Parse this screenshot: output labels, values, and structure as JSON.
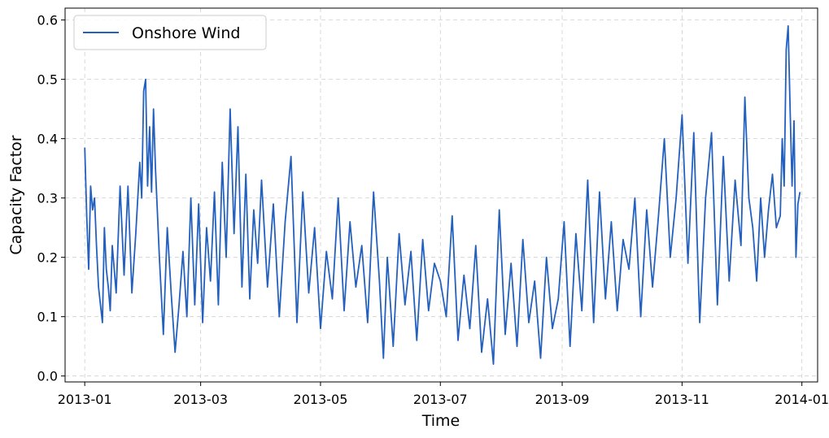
{
  "chart_data": {
    "type": "line",
    "title": "",
    "xlabel": "Time",
    "ylabel": "Capacity Factor",
    "x_range": [
      "2012-12-22",
      "2014-01-09"
    ],
    "ylim": [
      -0.01,
      0.62
    ],
    "x_ticks": [
      "2013-01-01",
      "2013-03-01",
      "2013-05-01",
      "2013-07-01",
      "2013-09-01",
      "2013-11-01",
      "2014-01-01"
    ],
    "x_tick_labels": [
      "2013-01",
      "2013-03",
      "2013-05",
      "2013-07",
      "2013-09",
      "2013-11",
      "2014-01"
    ],
    "y_ticks": [
      0.0,
      0.1,
      0.2,
      0.3,
      0.4,
      0.5,
      0.6
    ],
    "y_tick_labels": [
      "0.0",
      "0.1",
      "0.2",
      "0.3",
      "0.4",
      "0.5",
      "0.6"
    ],
    "grid": true,
    "legend_position": "top-left",
    "series": [
      {
        "name": "Onshore Wind",
        "color": "#2460be",
        "x": [
          "2013-01-01",
          "2013-01-02",
          "2013-01-03",
          "2013-01-04",
          "2013-01-05",
          "2013-01-06",
          "2013-01-07",
          "2013-01-08",
          "2013-01-09",
          "2013-01-10",
          "2013-01-11",
          "2013-01-12",
          "2013-01-13",
          "2013-01-14",
          "2013-01-15",
          "2013-01-17",
          "2013-01-19",
          "2013-01-21",
          "2013-01-23",
          "2013-01-25",
          "2013-01-27",
          "2013-01-29",
          "2013-01-30",
          "2013-01-31",
          "2013-02-01",
          "2013-02-02",
          "2013-02-03",
          "2013-02-04",
          "2013-02-05",
          "2013-02-06",
          "2013-02-08",
          "2013-02-10",
          "2013-02-12",
          "2013-02-14",
          "2013-02-16",
          "2013-02-18",
          "2013-02-20",
          "2013-02-22",
          "2013-02-24",
          "2013-02-26",
          "2013-02-28",
          "2013-03-02",
          "2013-03-04",
          "2013-03-06",
          "2013-03-08",
          "2013-03-10",
          "2013-03-12",
          "2013-03-14",
          "2013-03-16",
          "2013-03-18",
          "2013-03-20",
          "2013-03-22",
          "2013-03-24",
          "2013-03-26",
          "2013-03-28",
          "2013-03-30",
          "2013-04-01",
          "2013-04-04",
          "2013-04-07",
          "2013-04-10",
          "2013-04-13",
          "2013-04-16",
          "2013-04-19",
          "2013-04-22",
          "2013-04-25",
          "2013-04-28",
          "2013-05-01",
          "2013-05-04",
          "2013-05-07",
          "2013-05-10",
          "2013-05-13",
          "2013-05-16",
          "2013-05-19",
          "2013-05-22",
          "2013-05-25",
          "2013-05-28",
          "2013-05-31",
          "2013-06-02",
          "2013-06-04",
          "2013-06-07",
          "2013-06-10",
          "2013-06-13",
          "2013-06-16",
          "2013-06-19",
          "2013-06-22",
          "2013-06-25",
          "2013-06-28",
          "2013-07-01",
          "2013-07-04",
          "2013-07-07",
          "2013-07-10",
          "2013-07-13",
          "2013-07-16",
          "2013-07-19",
          "2013-07-22",
          "2013-07-25",
          "2013-07-28",
          "2013-07-31",
          "2013-08-03",
          "2013-08-06",
          "2013-08-09",
          "2013-08-12",
          "2013-08-15",
          "2013-08-18",
          "2013-08-21",
          "2013-08-24",
          "2013-08-27",
          "2013-08-30",
          "2013-09-02",
          "2013-09-05",
          "2013-09-08",
          "2013-09-11",
          "2013-09-14",
          "2013-09-17",
          "2013-09-20",
          "2013-09-23",
          "2013-09-26",
          "2013-09-29",
          "2013-10-02",
          "2013-10-05",
          "2013-10-08",
          "2013-10-11",
          "2013-10-14",
          "2013-10-17",
          "2013-10-20",
          "2013-10-23",
          "2013-10-26",
          "2013-10-29",
          "2013-11-01",
          "2013-11-04",
          "2013-11-07",
          "2013-11-10",
          "2013-11-13",
          "2013-11-16",
          "2013-11-19",
          "2013-11-22",
          "2013-11-25",
          "2013-11-28",
          "2013-12-01",
          "2013-12-03",
          "2013-12-05",
          "2013-12-07",
          "2013-12-09",
          "2013-12-11",
          "2013-12-13",
          "2013-12-15",
          "2013-12-17",
          "2013-12-19",
          "2013-12-21",
          "2013-12-22",
          "2013-12-23",
          "2013-12-24",
          "2013-12-25",
          "2013-12-26",
          "2013-12-27",
          "2013-12-28",
          "2013-12-29",
          "2013-12-30",
          "2013-12-31"
        ],
        "values": [
          0.385,
          0.27,
          0.18,
          0.32,
          0.28,
          0.3,
          0.22,
          0.15,
          0.12,
          0.09,
          0.25,
          0.18,
          0.15,
          0.11,
          0.22,
          0.14,
          0.32,
          0.17,
          0.32,
          0.14,
          0.24,
          0.36,
          0.3,
          0.48,
          0.5,
          0.32,
          0.42,
          0.31,
          0.45,
          0.35,
          0.2,
          0.07,
          0.25,
          0.14,
          0.04,
          0.12,
          0.21,
          0.1,
          0.3,
          0.12,
          0.29,
          0.09,
          0.25,
          0.16,
          0.31,
          0.12,
          0.36,
          0.2,
          0.45,
          0.24,
          0.42,
          0.15,
          0.34,
          0.13,
          0.28,
          0.19,
          0.33,
          0.15,
          0.29,
          0.1,
          0.26,
          0.37,
          0.09,
          0.31,
          0.14,
          0.25,
          0.08,
          0.21,
          0.13,
          0.3,
          0.11,
          0.26,
          0.15,
          0.22,
          0.09,
          0.31,
          0.16,
          0.03,
          0.2,
          0.05,
          0.24,
          0.12,
          0.21,
          0.06,
          0.23,
          0.11,
          0.19,
          0.16,
          0.1,
          0.27,
          0.06,
          0.17,
          0.08,
          0.22,
          0.04,
          0.13,
          0.02,
          0.28,
          0.07,
          0.19,
          0.05,
          0.23,
          0.09,
          0.16,
          0.03,
          0.2,
          0.08,
          0.13,
          0.26,
          0.05,
          0.24,
          0.11,
          0.33,
          0.09,
          0.31,
          0.13,
          0.26,
          0.11,
          0.23,
          0.18,
          0.3,
          0.1,
          0.28,
          0.15,
          0.27,
          0.4,
          0.2,
          0.3,
          0.44,
          0.19,
          0.41,
          0.09,
          0.3,
          0.41,
          0.12,
          0.37,
          0.16,
          0.33,
          0.22,
          0.47,
          0.3,
          0.25,
          0.16,
          0.3,
          0.2,
          0.28,
          0.34,
          0.25,
          0.27,
          0.4,
          0.32,
          0.55,
          0.59,
          0.45,
          0.32,
          0.43,
          0.2,
          0.29,
          0.31
        ]
      }
    ]
  }
}
